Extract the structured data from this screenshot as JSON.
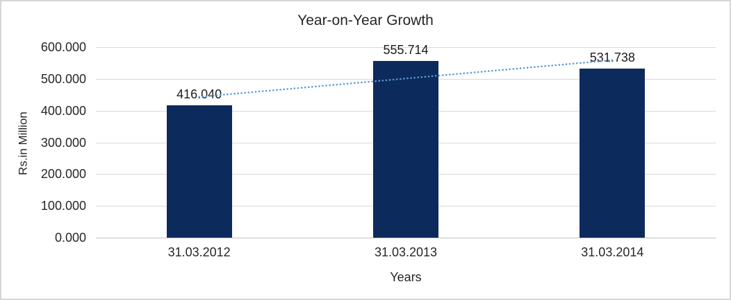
{
  "window": {
    "background_color": "#ffffff",
    "frame_border_color": "#d6d6d8"
  },
  "chart_data": {
    "type": "bar",
    "title": "Year-on-Year Growth",
    "xlabel": "Years",
    "ylabel": "Rs.in Million",
    "categories": [
      "31.03.2012",
      "31.03.2013",
      "31.03.2014"
    ],
    "values": [
      416.04,
      555.714,
      531.738
    ],
    "data_labels": [
      "416.040",
      "555.714",
      "531.738"
    ],
    "ylim": [
      0,
      600
    ],
    "yticks": [
      0,
      100,
      200,
      300,
      400,
      500,
      600
    ],
    "ytick_labels": [
      "0.000",
      "100.000",
      "200.000",
      "300.000",
      "400.000",
      "500.000",
      "600.000"
    ],
    "grid": true,
    "legend": "none",
    "bar_color": "#0d2a5c",
    "gridline_color": "#d9d9d9",
    "axis_line_color": "#bfbfbf",
    "text_color": "#262626",
    "trendline": {
      "type": "linear",
      "style": "dotted",
      "color": "#5b9bd5",
      "start_value": 443.3,
      "end_value": 559.0
    }
  }
}
